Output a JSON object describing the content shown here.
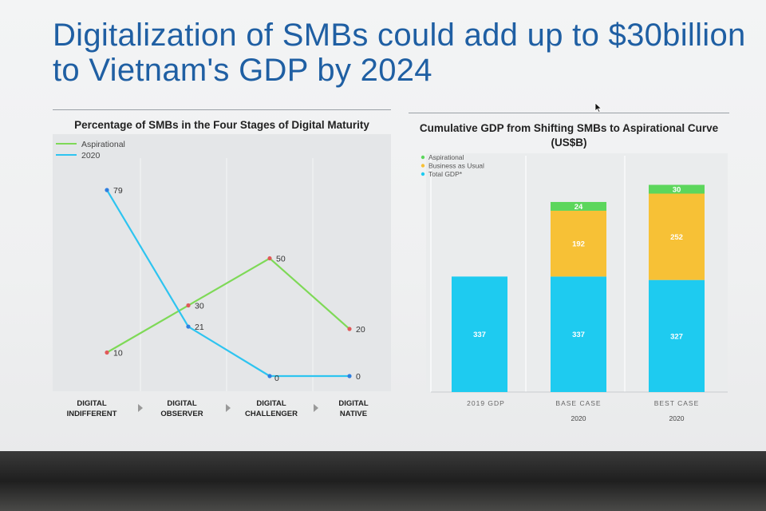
{
  "slide": {
    "title_line1": "Digitalization of SMBs could add up to $30billion",
    "title_line2": "to Vietnam's GDP by 2024"
  },
  "colors": {
    "aspirational_line": "#7ed957",
    "line_2020": "#2ec4f0",
    "bar_aspirational": "#5cd65c",
    "bar_bau": "#f7c136",
    "bar_total": "#1ecbf0",
    "title_blue": "#1f5fa3"
  },
  "chart_data": [
    {
      "type": "line",
      "title": "Percentage of SMBs in the Four Stages of Digital Maturity",
      "categories": [
        [
          "DIGITAL",
          "INDIFFERENT"
        ],
        [
          "DIGITAL",
          "OBSERVER"
        ],
        [
          "DIGITAL",
          "CHALLENGER"
        ],
        [
          "DIGITAL",
          "NATIVE"
        ]
      ],
      "series": [
        {
          "name": "Aspirational",
          "values": [
            10,
            30,
            50,
            20
          ]
        },
        {
          "name": "2020",
          "values": [
            79,
            21,
            0,
            0
          ]
        }
      ],
      "ylim": [
        0,
        100
      ],
      "grid": "vertical",
      "legend": "top-left"
    },
    {
      "type": "bar",
      "stacked": true,
      "title": "Cumulative GDP from Shifting SMBs to Aspirational Curve",
      "subtitle": "(US$B)",
      "categories": [
        "2019 GDP",
        "BASE CASE",
        "BEST CASE"
      ],
      "category_sublabels": [
        "",
        "2020",
        "2020"
      ],
      "series": [
        {
          "name": "Total GDP*",
          "values": [
            337,
            337,
            327
          ]
        },
        {
          "name": "Business as Usual",
          "values": [
            null,
            192,
            252
          ]
        },
        {
          "name": "Aspirational",
          "values": [
            null,
            24,
            30
          ]
        }
      ],
      "legend": "top-left"
    }
  ]
}
